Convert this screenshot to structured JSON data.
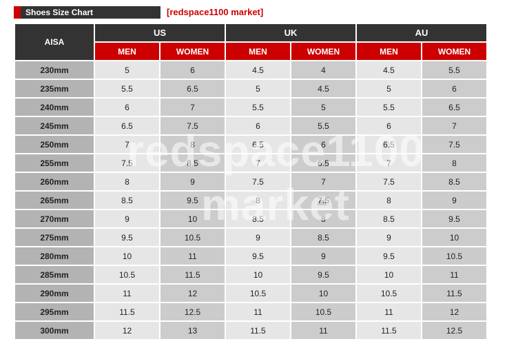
{
  "header": {
    "title": "Shoes Size Chart",
    "brand": "[redspace1100 market]"
  },
  "table": {
    "first_col": "AISA",
    "groups": [
      {
        "label": "US",
        "men": "MEN",
        "women": "WOMEN"
      },
      {
        "label": "UK",
        "men": "MEN",
        "women": "WOMEN"
      },
      {
        "label": "AU",
        "men": "MEN",
        "women": "WOMEN"
      }
    ],
    "rows": [
      {
        "size": "230mm",
        "us_men": "5",
        "us_women": "6",
        "uk_men": "4.5",
        "uk_women": "4",
        "au_men": "4.5",
        "au_women": "5.5"
      },
      {
        "size": "235mm",
        "us_men": "5.5",
        "us_women": "6.5",
        "uk_men": "5",
        "uk_women": "4.5",
        "au_men": "5",
        "au_women": "6"
      },
      {
        "size": "240mm",
        "us_men": "6",
        "us_women": "7",
        "uk_men": "5.5",
        "uk_women": "5",
        "au_men": "5.5",
        "au_women": "6.5"
      },
      {
        "size": "245mm",
        "us_men": "6.5",
        "us_women": "7.5",
        "uk_men": "6",
        "uk_women": "5.5",
        "au_men": "6",
        "au_women": "7"
      },
      {
        "size": "250mm",
        "us_men": "7",
        "us_women": "8",
        "uk_men": "6.5",
        "uk_women": "6",
        "au_men": "6.5",
        "au_women": "7.5"
      },
      {
        "size": "255mm",
        "us_men": "7.5",
        "us_women": "8.5",
        "uk_men": "7",
        "uk_women": "6.5",
        "au_men": "7",
        "au_women": "8"
      },
      {
        "size": "260mm",
        "us_men": "8",
        "us_women": "9",
        "uk_men": "7.5",
        "uk_women": "7",
        "au_men": "7.5",
        "au_women": "8.5"
      },
      {
        "size": "265mm",
        "us_men": "8.5",
        "us_women": "9.5",
        "uk_men": "8",
        "uk_women": "7.5",
        "au_men": "8",
        "au_women": "9"
      },
      {
        "size": "270mm",
        "us_men": "9",
        "us_women": "10",
        "uk_men": "8.5",
        "uk_women": "8",
        "au_men": "8.5",
        "au_women": "9.5"
      },
      {
        "size": "275mm",
        "us_men": "9.5",
        "us_women": "10.5",
        "uk_men": "9",
        "uk_women": "8.5",
        "au_men": "9",
        "au_women": "10"
      },
      {
        "size": "280mm",
        "us_men": "10",
        "us_women": "11",
        "uk_men": "9.5",
        "uk_women": "9",
        "au_men": "9.5",
        "au_women": "10.5"
      },
      {
        "size": "285mm",
        "us_men": "10.5",
        "us_women": "11.5",
        "uk_men": "10",
        "uk_women": "9.5",
        "au_men": "10",
        "au_women": "11"
      },
      {
        "size": "290mm",
        "us_men": "11",
        "us_women": "12",
        "uk_men": "10.5",
        "uk_women": "10",
        "au_men": "10.5",
        "au_women": "11.5"
      },
      {
        "size": "295mm",
        "us_men": "11.5",
        "us_women": "12.5",
        "uk_men": "11",
        "uk_women": "10.5",
        "au_men": "11",
        "au_women": "12"
      },
      {
        "size": "300mm",
        "us_men": "12",
        "us_women": "13",
        "uk_men": "11.5",
        "uk_women": "11",
        "au_men": "11.5",
        "au_women": "12.5"
      }
    ]
  },
  "watermark": {
    "line1": "redspace1100",
    "line2": "market"
  },
  "colors": {
    "header_dark": "#333333",
    "accent_red": "#cc0000",
    "size_cell": "#b3b3b3",
    "cell_light": "#e6e6e6",
    "cell_dark": "#cccccc"
  }
}
